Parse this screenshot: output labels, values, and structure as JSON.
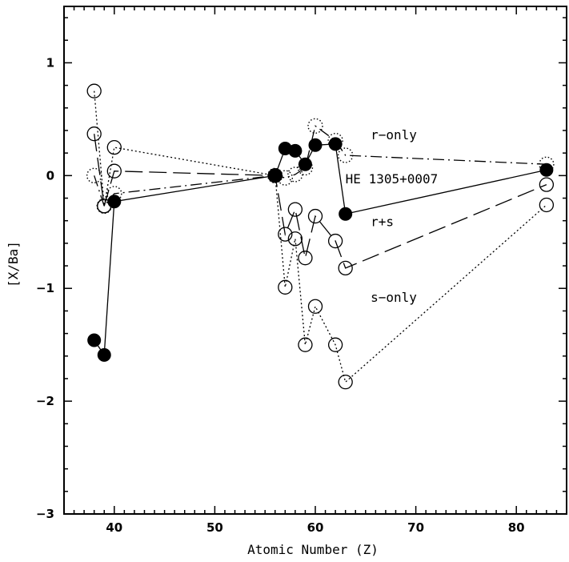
{
  "chart_data": {
    "type": "line",
    "xlabel": "Atomic Number (Z)",
    "ylabel": "[X/Ba]",
    "xlim": [
      35,
      85
    ],
    "ylim": [
      -3,
      1.5
    ],
    "x_ticks": [
      40,
      50,
      60,
      70,
      80
    ],
    "y_ticks": [
      1,
      0,
      -1,
      -2,
      -3
    ],
    "x_tick_labels": [
      "40",
      "50",
      "60",
      "70",
      "80"
    ],
    "y_tick_labels": [
      "1",
      "0",
      "−1",
      "−2",
      "−3"
    ],
    "grid": false,
    "annotations": [
      {
        "text": "r−only",
        "x": 65.5,
        "y": 0.32
      },
      {
        "text": "HE 1305+0007",
        "x": 63.0,
        "y": -0.07
      },
      {
        "text": "r+s",
        "x": 65.5,
        "y": -0.45
      },
      {
        "text": "s−only",
        "x": 65.5,
        "y": -1.12
      }
    ],
    "series": [
      {
        "id": "observed",
        "marker": "filled-circle",
        "line": "solid",
        "points": [
          {
            "x": 38,
            "y": -1.46
          },
          {
            "x": 39,
            "y": -1.59
          },
          {
            "x": 40,
            "y": -0.23
          },
          {
            "x": 56,
            "y": 0.0
          },
          {
            "x": 57,
            "y": 0.24
          },
          {
            "x": 58,
            "y": 0.22
          },
          {
            "x": 59,
            "y": 0.1
          },
          {
            "x": 60,
            "y": 0.27
          },
          {
            "x": 62,
            "y": 0.28
          },
          {
            "x": 63,
            "y": -0.34
          },
          {
            "x": 83,
            "y": 0.05
          }
        ]
      },
      {
        "id": "r-only",
        "marker": "dotted-open-circle",
        "line": "dash-dot",
        "points": [
          {
            "x": 38,
            "y": 0.0
          },
          {
            "x": 39,
            "y": -0.27
          },
          {
            "x": 40,
            "y": -0.16
          },
          {
            "x": 56,
            "y": 0.0
          },
          {
            "x": 57,
            "y": -0.02
          },
          {
            "x": 58,
            "y": 0.01
          },
          {
            "x": 59,
            "y": 0.07
          },
          {
            "x": 60,
            "y": 0.44
          },
          {
            "x": 62,
            "y": 0.31
          },
          {
            "x": 63,
            "y": 0.18
          },
          {
            "x": 83,
            "y": 0.1
          }
        ]
      },
      {
        "id": "r+s",
        "marker": "open-circle",
        "line": "dashed",
        "points": [
          {
            "x": 38,
            "y": 0.37
          },
          {
            "x": 39,
            "y": -0.27
          },
          {
            "x": 40,
            "y": 0.04
          },
          {
            "x": 56,
            "y": 0.0
          },
          {
            "x": 57,
            "y": -0.52
          },
          {
            "x": 58,
            "y": -0.3
          },
          {
            "x": 59,
            "y": -0.73
          },
          {
            "x": 60,
            "y": -0.36
          },
          {
            "x": 62,
            "y": -0.58
          },
          {
            "x": 63,
            "y": -0.82
          },
          {
            "x": 83,
            "y": -0.08
          }
        ]
      },
      {
        "id": "s-only",
        "marker": "open-circle",
        "line": "dotted",
        "points": [
          {
            "x": 38,
            "y": 0.75
          },
          {
            "x": 39,
            "y": -0.27
          },
          {
            "x": 40,
            "y": 0.25
          },
          {
            "x": 56,
            "y": 0.0
          },
          {
            "x": 57,
            "y": -0.99
          },
          {
            "x": 58,
            "y": -0.56
          },
          {
            "x": 59,
            "y": -1.5
          },
          {
            "x": 60,
            "y": -1.16
          },
          {
            "x": 62,
            "y": -1.5
          },
          {
            "x": 63,
            "y": -1.83
          },
          {
            "x": 83,
            "y": -0.26
          }
        ]
      }
    ]
  }
}
